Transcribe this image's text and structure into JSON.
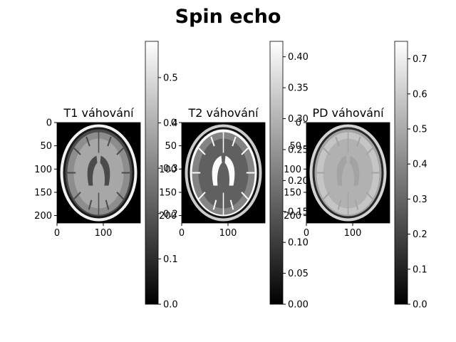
{
  "figure": {
    "title": "Spin echo"
  },
  "chart_data": [
    {
      "type": "heatmap",
      "title": "T1 váhování",
      "colormap": "gray",
      "xlim": [
        0,
        180
      ],
      "ylim": [
        216,
        0
      ],
      "xticks": [
        0,
        100
      ],
      "xtick_labels": [
        "0",
        "100"
      ],
      "yticks": [
        0,
        50,
        100,
        150,
        200
      ],
      "ytick_labels": [
        "0",
        "50",
        "100",
        "150",
        "200"
      ],
      "colorbar": {
        "range": [
          0,
          0.58
        ],
        "ticks": [
          0,
          0.1,
          0.2,
          0.3,
          0.4,
          0.5
        ],
        "tick_labels": [
          "0.0",
          "0.1",
          "0.2",
          "0.3",
          "0.4",
          "0.5"
        ]
      },
      "tissue_intensity": {
        "background": 0.0,
        "csf": 0.17,
        "gray_matter": 0.32,
        "white_matter": 0.38,
        "skull": 0.06,
        "scalp": 0.55
      }
    },
    {
      "type": "heatmap",
      "title": "T2 váhování",
      "colormap": "gray",
      "xlim": [
        0,
        180
      ],
      "ylim": [
        216,
        0
      ],
      "xticks": [
        0,
        100
      ],
      "xtick_labels": [
        "0",
        "100"
      ],
      "yticks": [
        0,
        50,
        100,
        150,
        200
      ],
      "ytick_labels": [
        "0",
        "50",
        "100",
        "150",
        "200"
      ],
      "colorbar": {
        "range": [
          0,
          0.425
        ],
        "ticks": [
          0,
          0.05,
          0.1,
          0.15,
          0.2,
          0.25,
          0.3,
          0.35,
          0.4
        ],
        "tick_labels": [
          "0.00",
          "0.05",
          "0.10",
          "0.15",
          "0.20",
          "0.25",
          "0.30",
          "0.35",
          "0.40"
        ]
      },
      "tissue_intensity": {
        "background": 0.0,
        "csf": 0.42,
        "gray_matter": 0.22,
        "white_matter": 0.16,
        "skull": 0.03,
        "scalp": 0.34
      }
    },
    {
      "type": "heatmap",
      "title": "PD váhování",
      "colormap": "gray",
      "xlim": [
        0,
        180
      ],
      "ylim": [
        216,
        0
      ],
      "xticks": [
        0,
        100
      ],
      "xtick_labels": [
        "0",
        "100"
      ],
      "yticks": [
        0,
        50,
        100,
        150,
        200
      ],
      "ytick_labels": [
        "0",
        "50",
        "100",
        "150",
        "200"
      ],
      "colorbar": {
        "range": [
          0,
          0.75
        ],
        "ticks": [
          0,
          0.1,
          0.2,
          0.3,
          0.4,
          0.5,
          0.6,
          0.7
        ],
        "tick_labels": [
          "0.0",
          "0.1",
          "0.2",
          "0.3",
          "0.4",
          "0.5",
          "0.6",
          "0.7"
        ]
      },
      "tissue_intensity": {
        "background": 0.0,
        "csf": 0.48,
        "gray_matter": 0.58,
        "white_matter": 0.52,
        "skull": 0.12,
        "scalp": 0.62
      }
    }
  ]
}
